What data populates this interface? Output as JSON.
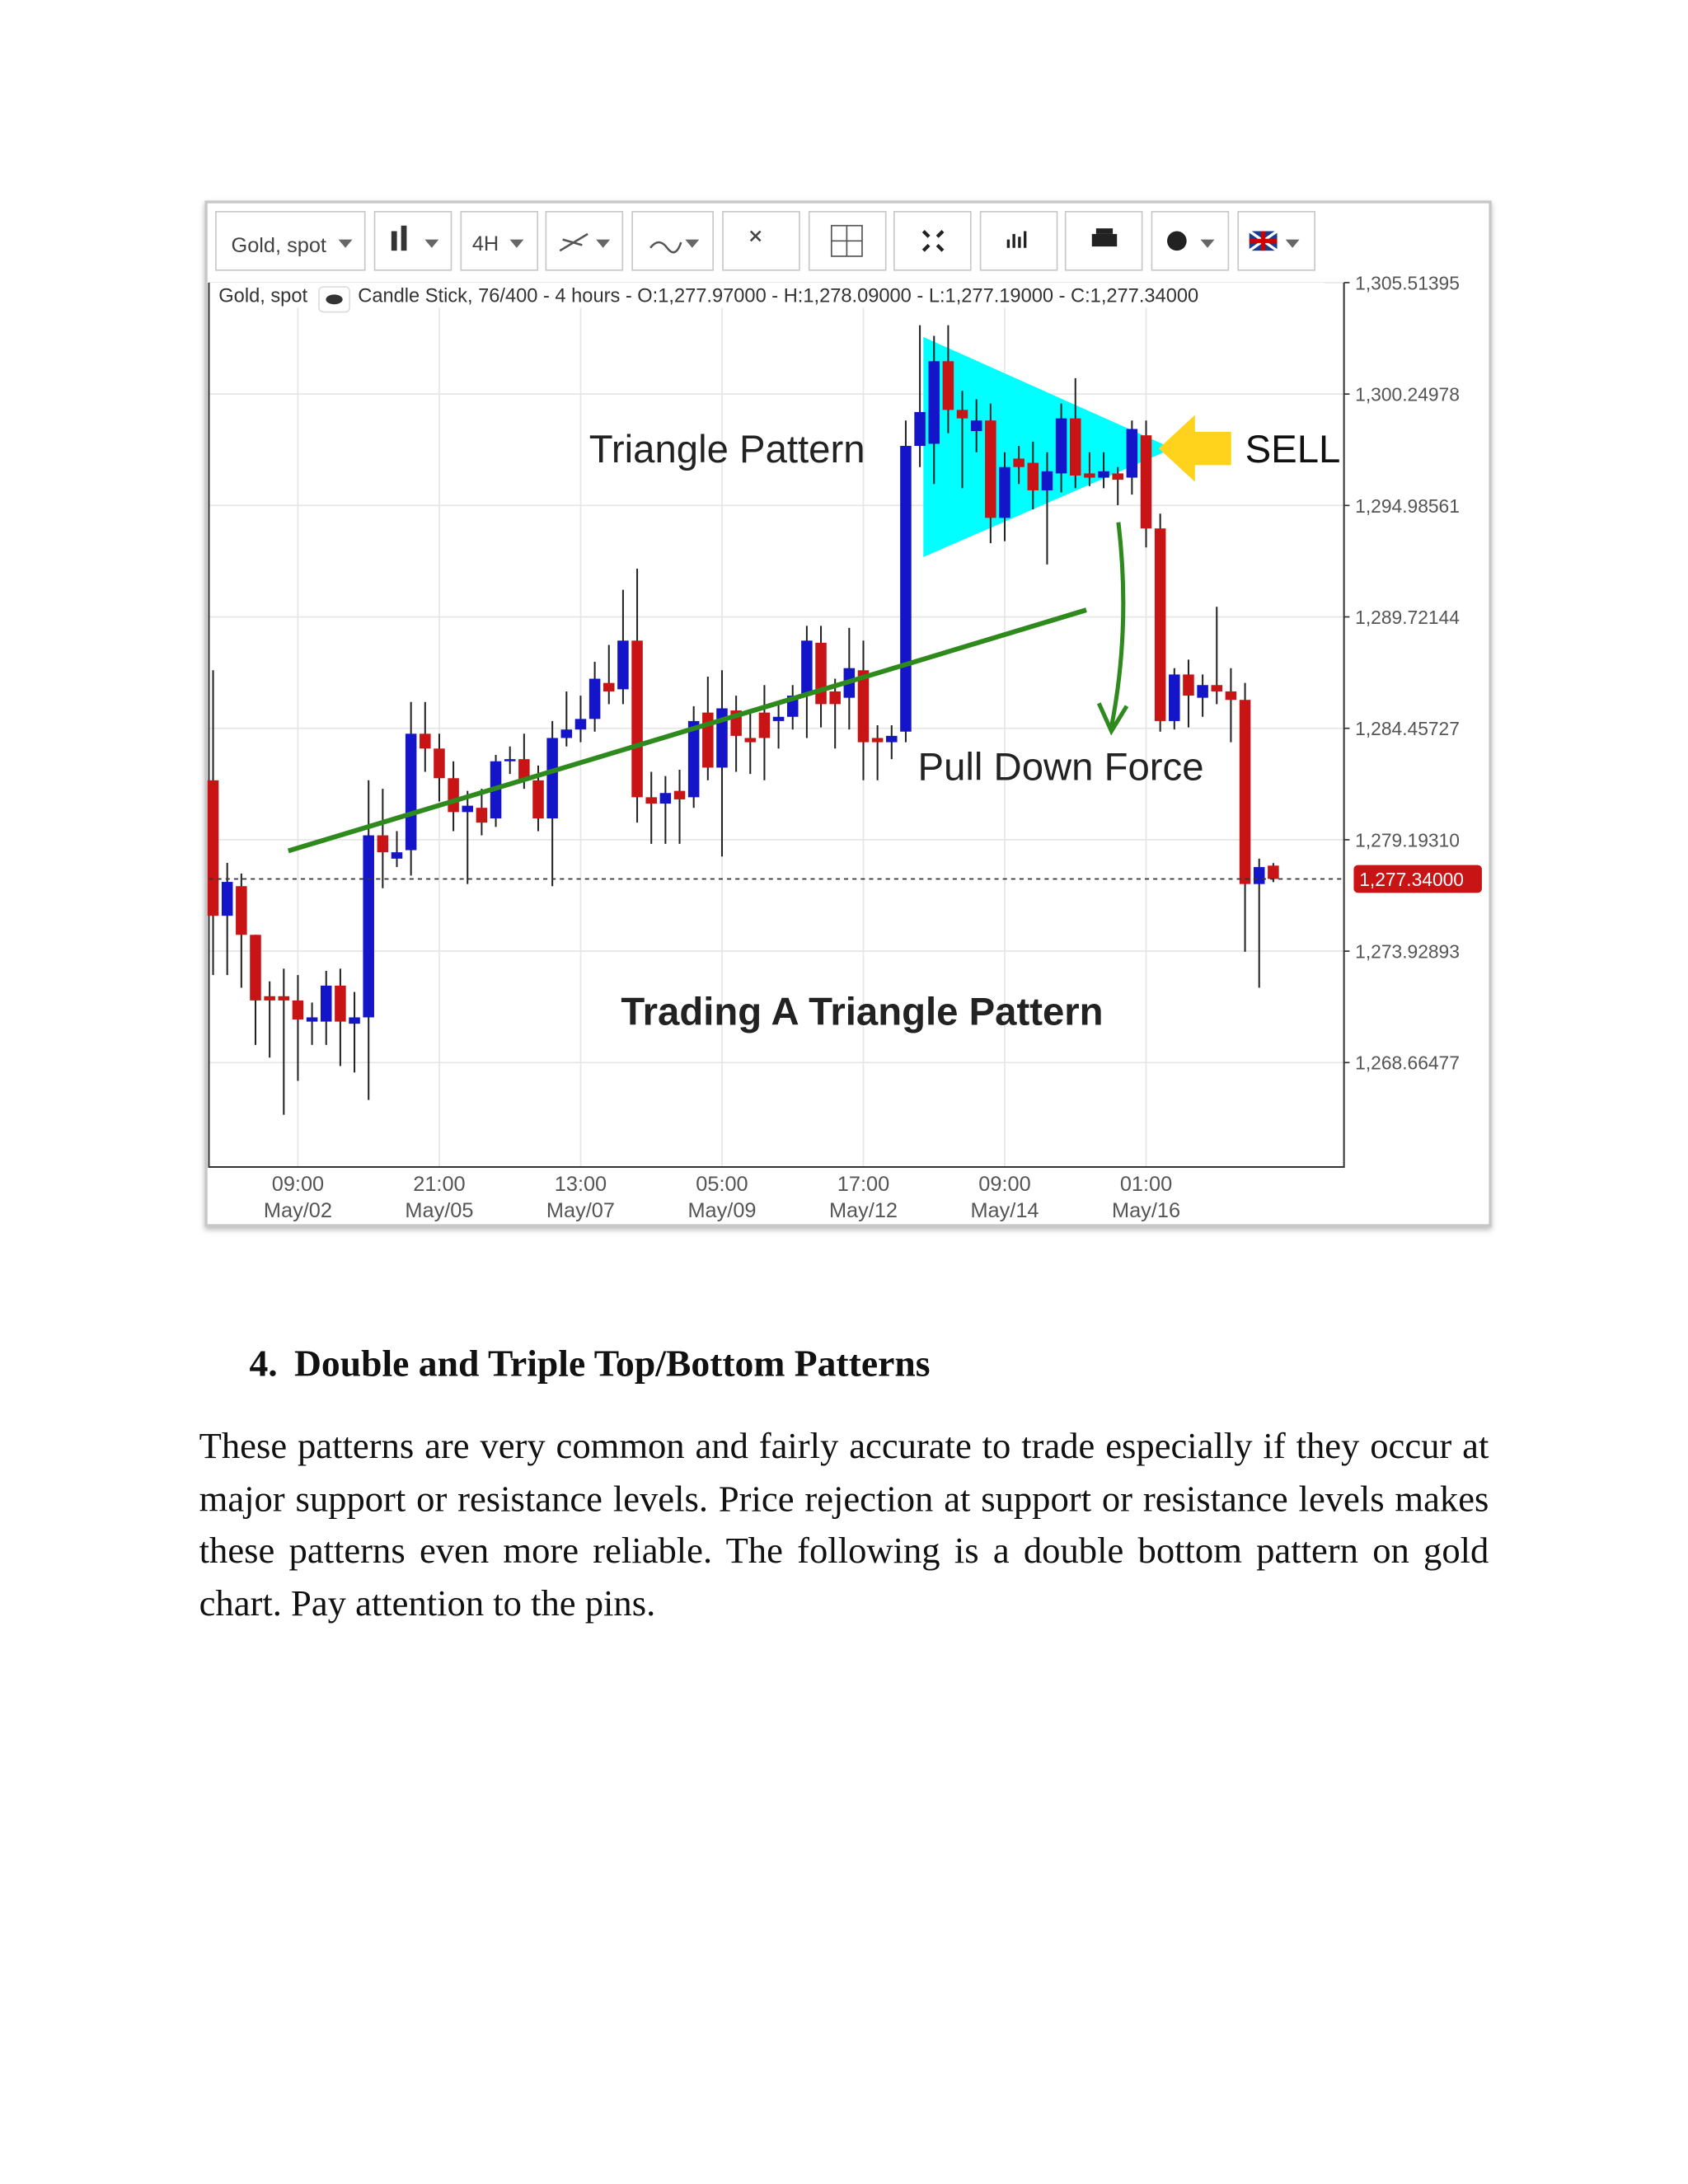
{
  "chart_data": {
    "type": "candlestick",
    "symbol": "Gold, spot",
    "timeframe": "4H",
    "info": "Candle Stick, 76/400 - 4 hours - O:1,277.97000 - H:1,278.09000 - L:1,277.19000 - C:1,277.34000",
    "annotations": [
      "Triangle Pattern",
      "SELL",
      "Pull Down Force",
      "Trading A Triangle Pattern"
    ],
    "up_color": "#1414c8",
    "down_color": "#c81414",
    "categories": [
      null,
      null,
      null,
      null,
      null,
      null,
      [
        "09:00",
        "May/02"
      ],
      null,
      null,
      null,
      null,
      null,
      null,
      null,
      null,
      null,
      [
        "21:00",
        "May/05"
      ],
      null,
      null,
      null,
      null,
      null,
      null,
      null,
      null,
      null,
      [
        "13:00",
        "May/07"
      ],
      null,
      null,
      null,
      null,
      null,
      null,
      null,
      null,
      null,
      [
        "05:00",
        "May/09"
      ],
      null,
      null,
      null,
      null,
      null,
      null,
      null,
      null,
      null,
      [
        "17:00",
        "May/12"
      ],
      null,
      null,
      null,
      null,
      null,
      null,
      null,
      null,
      null,
      [
        "09:00",
        "May/14"
      ],
      null,
      null,
      null,
      null,
      null,
      null,
      null,
      null,
      null,
      [
        "01:00",
        "May/16"
      ],
      null,
      null,
      null,
      null,
      null,
      null,
      null,
      null,
      null
    ],
    "open": [
      1282.0,
      1275.6,
      1277.0,
      1274.7,
      1271.8,
      1271.8,
      1271.6,
      1270.6,
      1270.6,
      1272.3,
      1270.5,
      1270.8,
      1279.4,
      1278.3,
      1278.7,
      1284.2,
      1283.5,
      1282.1,
      1280.5,
      1280.7,
      1280.2,
      1282.9,
      1283.0,
      1282.0,
      1280.2,
      1284.0,
      1284.4,
      1284.9,
      1286.6,
      1286.3,
      1288.6,
      1281.2,
      1280.9,
      1281.5,
      1281.2,
      1285.2,
      1282.6,
      1285.3,
      1284.0,
      1285.2,
      1284.8,
      1285.0,
      1286.1,
      1288.5,
      1286.2,
      1285.9,
      1287.2,
      1284.0,
      1283.8,
      1284.3,
      1297.8,
      1297.9,
      1301.8,
      1299.5,
      1298.5,
      1299.0,
      1294.4,
      1297.2,
      1297.0,
      1295.7,
      1296.5,
      1299.1,
      1296.5,
      1296.3,
      1296.5,
      1296.3,
      1298.3,
      1293.9,
      1284.8,
      1287.0,
      1285.9,
      1286.5,
      1286.2,
      1285.8,
      1277.1,
      1277.97
    ],
    "high": [
      1287.2,
      1278.1,
      1277.6,
      1274.7,
      1272.5,
      1273.1,
      1272.8,
      1271.5,
      1273.0,
      1273.1,
      1272.0,
      1282.0,
      1281.6,
      1279.6,
      1285.7,
      1285.7,
      1284.2,
      1282.9,
      1281.5,
      1281.6,
      1283.2,
      1283.6,
      1284.2,
      1282.7,
      1284.8,
      1286.2,
      1286.0,
      1287.6,
      1288.4,
      1291.0,
      1292.0,
      1282.4,
      1282.2,
      1282.5,
      1285.5,
      1286.9,
      1287.2,
      1286.0,
      1285.2,
      1286.5,
      1285.7,
      1286.5,
      1289.3,
      1289.3,
      1286.8,
      1289.2,
      1288.6,
      1284.6,
      1284.6,
      1299.0,
      1303.5,
      1303.0,
      1303.5,
      1300.4,
      1300.0,
      1299.8,
      1297.5,
      1297.8,
      1298.0,
      1297.5,
      1299.8,
      1301.0,
      1297.5,
      1297.5,
      1296.8,
      1299.0,
      1299.0,
      1294.6,
      1287.3,
      1287.7,
      1287.0,
      1290.2,
      1287.3,
      1286.6,
      1278.3,
      1278.09
    ],
    "low": [
      1272.8,
      1272.8,
      1272.2,
      1269.5,
      1268.9,
      1266.2,
      1267.8,
      1269.5,
      1269.5,
      1268.5,
      1268.2,
      1266.9,
      1276.9,
      1277.9,
      1277.5,
      1282.4,
      1281.0,
      1279.6,
      1277.1,
      1279.4,
      1279.8,
      1282.3,
      1281.6,
      1279.6,
      1277.0,
      1283.6,
      1283.8,
      1284.3,
      1285.6,
      1285.6,
      1280.0,
      1279.0,
      1279.0,
      1279.0,
      1280.7,
      1282.0,
      1278.4,
      1282.4,
      1282.3,
      1282.0,
      1283.5,
      1284.4,
      1284.0,
      1284.5,
      1283.5,
      1284.4,
      1282.0,
      1282.0,
      1283.0,
      1283.8,
      1296.8,
      1296.0,
      1298.4,
      1295.8,
      1297.5,
      1293.2,
      1293.3,
      1296.0,
      1294.8,
      1292.2,
      1295.6,
      1295.8,
      1295.9,
      1295.8,
      1295.0,
      1295.5,
      1293.0,
      1284.3,
      1284.4,
      1284.5,
      1285.0,
      1285.6,
      1283.8,
      1273.9,
      1272.2,
      1277.19
    ],
    "close": [
      1275.6,
      1277.2,
      1274.7,
      1271.6,
      1271.6,
      1271.6,
      1270.7,
      1270.8,
      1272.3,
      1270.6,
      1270.8,
      1279.4,
      1278.6,
      1278.6,
      1284.2,
      1283.5,
      1282.1,
      1280.5,
      1280.8,
      1280.0,
      1282.9,
      1283.0,
      1282.0,
      1280.2,
      1284.0,
      1284.4,
      1284.9,
      1286.8,
      1286.2,
      1288.6,
      1281.2,
      1280.9,
      1281.4,
      1281.1,
      1284.8,
      1282.6,
      1285.4,
      1284.1,
      1283.8,
      1284.0,
      1285.0,
      1286.0,
      1288.6,
      1285.6,
      1285.6,
      1287.3,
      1283.8,
      1283.8,
      1284.1,
      1297.8,
      1299.4,
      1301.8,
      1299.5,
      1299.1,
      1299.0,
      1294.4,
      1296.8,
      1296.8,
      1295.7,
      1296.6,
      1299.1,
      1296.4,
      1296.3,
      1296.6,
      1296.2,
      1298.6,
      1293.9,
      1284.8,
      1287.0,
      1286.0,
      1286.5,
      1286.2,
      1285.8,
      1277.1,
      1277.9,
      1277.34
    ],
    "ylim": [
      1263.73,
      1305.51
    ],
    "yticks": [
      {
        "value": 1305.51395,
        "label": "1,305.51395"
      },
      {
        "value": 1300.24978,
        "label": "1,300.24978"
      },
      {
        "value": 1294.98561,
        "label": "1,294.98561"
      },
      {
        "value": 1289.72144,
        "label": "1,289.72144"
      },
      {
        "value": 1284.45727,
        "label": "1,284.45727"
      },
      {
        "value": 1279.1931,
        "label": "1,279.19310"
      },
      {
        "value": 1273.92893,
        "label": "1,273.92893"
      },
      {
        "value": 1268.66477,
        "label": "1,268.66477"
      }
    ],
    "last_price": {
      "value": 1277.34,
      "label": "1,277.34000"
    },
    "grid": true
  },
  "document": {
    "heading": {
      "number": "4.",
      "text": "Double and Triple Top/Bottom Patterns"
    },
    "paragraph": "These patterns are very common and fairly accurate to trade especially if they occur at major support or resistance levels. Price rejection at support or resistance levels makes these patterns even more reliable. The following is a double bottom pattern on gold chart. Pay attention to the pins."
  }
}
